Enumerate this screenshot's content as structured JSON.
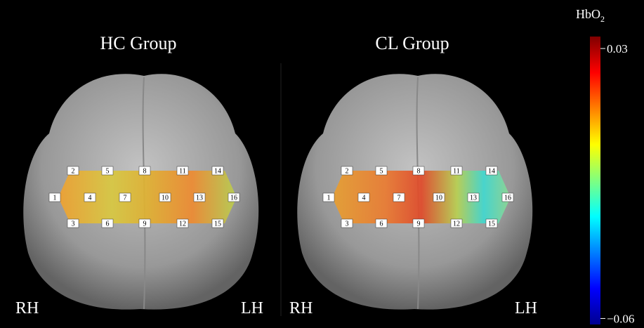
{
  "panels": [
    {
      "title": "HC Group",
      "left_label": "RH",
      "right_label": "LH",
      "channels": [
        "1",
        "2",
        "3",
        "4",
        "5",
        "6",
        "7",
        "8",
        "9",
        "10",
        "11",
        "12",
        "13",
        "14",
        "15",
        "16"
      ]
    },
    {
      "title": "CL Group",
      "left_label": "RH",
      "right_label": "LH",
      "channels": [
        "1",
        "2",
        "3",
        "4",
        "5",
        "6",
        "7",
        "8",
        "9",
        "10",
        "11",
        "12",
        "13",
        "14",
        "15",
        "16"
      ]
    }
  ],
  "colorbar": {
    "label": "HbO",
    "label_subscript": "2",
    "clim": [
      -0.062,
      0.034
    ],
    "ticks": [
      {
        "value": 0.03,
        "label": "0.03"
      },
      {
        "value": -0.06,
        "label": "−0.06"
      }
    ]
  }
}
